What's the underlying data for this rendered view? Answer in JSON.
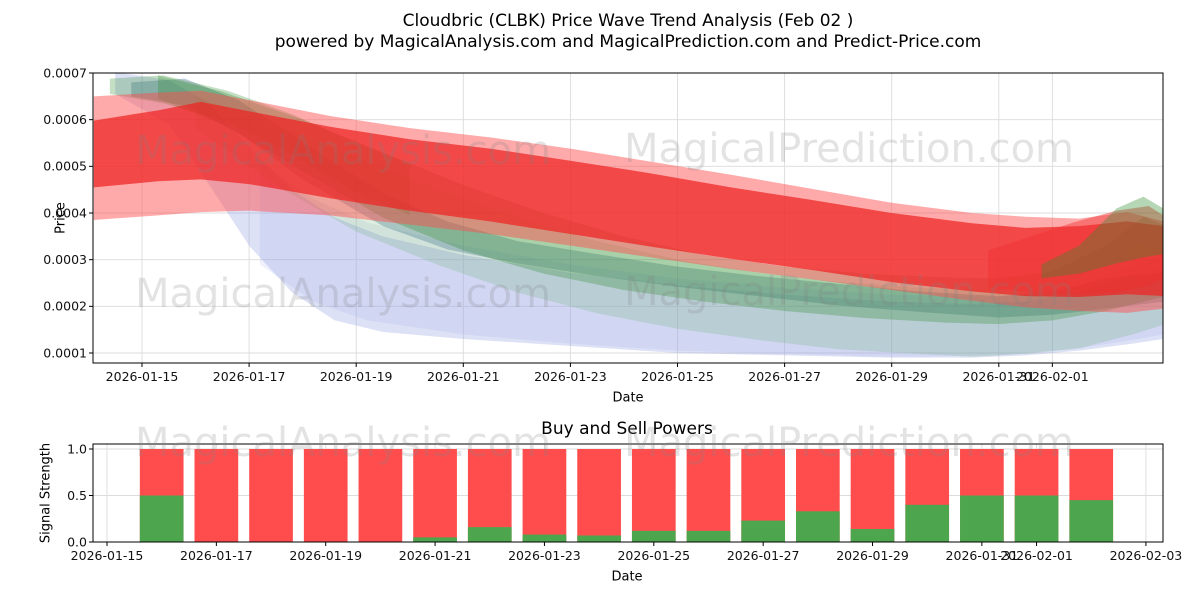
{
  "title": {
    "line1": "Cloudbric (CLBK) Price Wave Trend Analysis (Feb 02 )",
    "line2": "powered by MagicalAnalysis.com and MagicalPrediction.com and Predict-Price.com"
  },
  "watermark": {
    "left_text": "MagicalAnalysis.com",
    "right_text": "MagicalPrediction.com"
  },
  "chart_data": [
    {
      "type": "area",
      "name": "price-wave-trend",
      "ylabel": "Price",
      "xlabel": "Date",
      "grid": true,
      "price_unit": 0.0001,
      "ylim_e4": [
        0.786,
        7.0
      ],
      "xlim_days": [
        -0.92,
        19.07
      ],
      "y_ticks": [
        {
          "label": "0.0007",
          "value_e4": 7
        },
        {
          "label": "0.0006",
          "value_e4": 6
        },
        {
          "label": "0.0005",
          "value_e4": 5
        },
        {
          "label": "0.0004",
          "value_e4": 4
        },
        {
          "label": "0.0003",
          "value_e4": 3
        },
        {
          "label": "0.0002",
          "value_e4": 2
        },
        {
          "label": "0.0001",
          "value_e4": 1
        }
      ],
      "x_ticks": [
        {
          "label": "2026-01-15",
          "day": 0
        },
        {
          "label": "2026-01-17",
          "day": 2
        },
        {
          "label": "2026-01-19",
          "day": 4
        },
        {
          "label": "2026-01-21",
          "day": 6
        },
        {
          "label": "2026-01-23",
          "day": 8
        },
        {
          "label": "2026-01-25",
          "day": 10
        },
        {
          "label": "2026-01-27",
          "day": 12
        },
        {
          "label": "2026-01-29",
          "day": 14
        },
        {
          "label": "2026-01-31",
          "day": 16
        },
        {
          "label": "2026-02-01",
          "day": 17
        }
      ],
      "bands": [
        {
          "name": "lavender-light",
          "color": "#aab4ea",
          "alpha": 0.2,
          "points": [
            [
              2.2,
              5.1,
              2.9
            ],
            [
              3.2,
              4.3,
              2.1
            ],
            [
              4.2,
              3.8,
              1.7
            ],
            [
              6,
              3.3,
              1.4
            ],
            [
              8,
              2.9,
              1.2
            ],
            [
              10,
              2.6,
              1.05
            ],
            [
              12,
              2.4,
              0.98
            ],
            [
              14,
              2.25,
              0.92
            ],
            [
              16,
              2.2,
              0.95
            ],
            [
              17.5,
              2.45,
              1.1
            ],
            [
              18.6,
              2.9,
              1.3
            ],
            [
              19.07,
              3.0,
              1.4
            ]
          ]
        },
        {
          "name": "lavender",
          "color": "#8f9be0",
          "alpha": 0.3,
          "points": [
            [
              -0.5,
              7.02,
              6.55
            ],
            [
              0.5,
              6.85,
              5.9
            ],
            [
              1.2,
              6.4,
              4.7
            ],
            [
              2.0,
              5.4,
              3.3
            ],
            [
              2.8,
              4.5,
              2.3
            ],
            [
              3.6,
              3.9,
              1.7
            ],
            [
              4.5,
              3.5,
              1.45
            ],
            [
              6.0,
              3.1,
              1.3
            ],
            [
              8.0,
              2.72,
              1.15
            ],
            [
              10.0,
              2.45,
              1.0
            ],
            [
              12.0,
              2.25,
              0.95
            ],
            [
              14.0,
              2.1,
              0.9
            ],
            [
              15.5,
              2.05,
              0.9
            ],
            [
              16.5,
              2.1,
              0.95
            ],
            [
              17.5,
              2.3,
              1.05
            ],
            [
              18.5,
              2.7,
              1.2
            ],
            [
              19.07,
              2.8,
              1.3
            ]
          ]
        },
        {
          "name": "steel-blue",
          "color": "#5b7fa6",
          "alpha": 0.4,
          "points": [
            [
              -0.2,
              6.8,
              6.5
            ],
            [
              0.8,
              6.88,
              6.3
            ],
            [
              1.8,
              6.42,
              5.72
            ],
            [
              3.0,
              5.52,
              4.72
            ],
            [
              4.5,
              4.42,
              3.72
            ],
            [
              5.7,
              3.82,
              3.22
            ],
            [
              7.0,
              3.4,
              2.92
            ],
            [
              8.5,
              3.12,
              2.65
            ],
            [
              10.0,
              2.85,
              2.42
            ],
            [
              11.5,
              2.65,
              2.22
            ],
            [
              13.0,
              2.48,
              2.02
            ],
            [
              14.5,
              2.32,
              1.88
            ],
            [
              16.0,
              2.22,
              1.76
            ],
            [
              17.0,
              2.3,
              1.82
            ],
            [
              18.0,
              2.6,
              1.95
            ],
            [
              19.07,
              2.72,
              2.1
            ]
          ]
        },
        {
          "name": "green-topleft",
          "color": "#2e8b2e",
          "alpha": 0.28,
          "points": [
            [
              -0.6,
              6.88,
              6.55
            ],
            [
              0.4,
              6.95,
              6.35
            ],
            [
              1.6,
              6.62,
              5.95
            ],
            [
              2.8,
              6.12,
              5.25
            ],
            [
              4.0,
              5.5,
              4.45
            ],
            [
              5.0,
              5.05,
              3.95
            ]
          ]
        },
        {
          "name": "green-light",
          "color": "#4ca64c",
          "alpha": 0.18,
          "points": [
            [
              1.0,
              6.5,
              5.8
            ],
            [
              2.5,
              5.9,
              4.6
            ],
            [
              4.0,
              5.2,
              3.6
            ],
            [
              5.5,
              4.5,
              2.9
            ],
            [
              7.0,
              3.9,
              2.3
            ],
            [
              8.5,
              3.4,
              1.85
            ],
            [
              10.0,
              3.0,
              1.52
            ],
            [
              11.5,
              2.72,
              1.28
            ],
            [
              13.0,
              2.52,
              1.08
            ],
            [
              14.5,
              2.4,
              0.98
            ],
            [
              15.5,
              2.36,
              0.92
            ],
            [
              16.5,
              2.42,
              0.98
            ],
            [
              17.5,
              2.7,
              1.1
            ],
            [
              18.5,
              3.3,
              1.4
            ],
            [
              19.07,
              3.42,
              1.6
            ]
          ]
        },
        {
          "name": "green-main",
          "color": "#2e8b2e",
          "alpha": 0.3,
          "points": [
            [
              0.3,
              6.95,
              6.45
            ],
            [
              1.5,
              6.6,
              5.9
            ],
            [
              3.0,
              6.0,
              4.9
            ],
            [
              4.5,
              5.3,
              3.9
            ],
            [
              6.0,
              4.6,
              3.2
            ],
            [
              7.5,
              4.0,
              2.7
            ],
            [
              9.0,
              3.5,
              2.35
            ],
            [
              10.5,
              3.1,
              2.1
            ],
            [
              12.0,
              2.85,
              1.9
            ],
            [
              13.5,
              2.7,
              1.75
            ],
            [
              15.0,
              2.62,
              1.65
            ],
            [
              16.0,
              2.6,
              1.62
            ],
            [
              17.0,
              2.75,
              1.7
            ],
            [
              18.0,
              3.3,
              1.9
            ],
            [
              18.7,
              3.92,
              2.1
            ],
            [
              19.07,
              3.75,
              2.2
            ]
          ]
        },
        {
          "name": "red-outer",
          "color": "#ff4d4d",
          "alpha": 0.48,
          "points": [
            [
              -0.9,
              6.5,
              3.85
            ],
            [
              0.3,
              6.58,
              3.95
            ],
            [
              1.1,
              6.62,
              4.02
            ],
            [
              2.0,
              6.42,
              4.05
            ],
            [
              3.5,
              6.08,
              3.95
            ],
            [
              5.0,
              5.82,
              3.75
            ],
            [
              6.5,
              5.62,
              3.55
            ],
            [
              8.0,
              5.38,
              3.3
            ],
            [
              9.5,
              5.1,
              3.05
            ],
            [
              11.0,
              4.82,
              2.8
            ],
            [
              12.5,
              4.52,
              2.58
            ],
            [
              14.0,
              4.22,
              2.35
            ],
            [
              15.5,
              4.0,
              2.12
            ],
            [
              16.5,
              3.92,
              1.98
            ],
            [
              17.5,
              3.88,
              1.9
            ],
            [
              18.4,
              4.02,
              1.86
            ],
            [
              19.07,
              3.82,
              1.95
            ]
          ]
        },
        {
          "name": "red-core",
          "color": "#ee2222",
          "alpha": 0.72,
          "points": [
            [
              -0.9,
              5.98,
              4.55
            ],
            [
              0.3,
              6.2,
              4.68
            ],
            [
              1.1,
              6.38,
              4.72
            ],
            [
              2.0,
              6.18,
              4.62
            ],
            [
              3.5,
              5.85,
              4.32
            ],
            [
              5.0,
              5.58,
              4.05
            ],
            [
              6.5,
              5.38,
              3.82
            ],
            [
              8.0,
              5.12,
              3.55
            ],
            [
              9.5,
              4.85,
              3.28
            ],
            [
              11.0,
              4.55,
              3.02
            ],
            [
              12.5,
              4.28,
              2.78
            ],
            [
              14.0,
              4.0,
              2.52
            ],
            [
              15.5,
              3.78,
              2.32
            ],
            [
              16.5,
              3.68,
              2.22
            ],
            [
              17.5,
              3.72,
              2.2
            ],
            [
              18.4,
              3.82,
              2.26
            ],
            [
              19.07,
              3.72,
              2.22
            ]
          ]
        },
        {
          "name": "red-right",
          "color": "#f03030",
          "alpha": 0.45,
          "points": [
            [
              15.8,
              3.2,
              2.4
            ],
            [
              16.6,
              3.5,
              2.3
            ],
            [
              17.4,
              3.8,
              2.25
            ],
            [
              18.2,
              4.05,
              2.3
            ],
            [
              18.8,
              4.15,
              2.45
            ],
            [
              19.07,
              3.95,
              2.6
            ]
          ]
        },
        {
          "name": "green-right",
          "color": "#2e8b2e",
          "alpha": 0.35,
          "points": [
            [
              16.8,
              2.9,
              2.6
            ],
            [
              17.5,
              3.3,
              2.7
            ],
            [
              18.2,
              4.1,
              2.92
            ],
            [
              18.7,
              4.35,
              3.05
            ],
            [
              19.07,
              4.1,
              3.12
            ]
          ]
        }
      ]
    },
    {
      "type": "bar",
      "name": "buy-sell-powers",
      "title": "Buy and Sell Powers",
      "ylabel": "Signal Strength",
      "xlabel": "Date",
      "grid": true,
      "ylim": [
        0,
        1.054
      ],
      "y_ticks": [
        {
          "label": "0.0",
          "value": 0.0
        },
        {
          "label": "0.5",
          "value": 0.5
        },
        {
          "label": "1.0",
          "value": 1.0
        }
      ],
      "x_ticks": [
        {
          "label": "2026-01-15",
          "day": 0
        },
        {
          "label": "2026-01-17",
          "day": 2
        },
        {
          "label": "2026-01-19",
          "day": 4
        },
        {
          "label": "2026-01-21",
          "day": 6
        },
        {
          "label": "2026-01-23",
          "day": 8
        },
        {
          "label": "2026-01-25",
          "day": 10
        },
        {
          "label": "2026-01-27",
          "day": 12
        },
        {
          "label": "2026-01-29",
          "day": 14
        },
        {
          "label": "2026-01-31",
          "day": 16
        },
        {
          "label": "2026-02-01",
          "day": 17
        },
        {
          "label": "2026-02-03",
          "day": 19
        }
      ],
      "categories": [
        "2026-01-16",
        "2026-01-17",
        "2026-01-18",
        "2026-01-19",
        "2026-01-20",
        "2026-01-21",
        "2026-01-22",
        "2026-01-23",
        "2026-01-24",
        "2026-01-25",
        "2026-01-26",
        "2026-01-27",
        "2026-01-28",
        "2026-01-29",
        "2026-01-30",
        "2026-01-31",
        "2026-02-01",
        "2026-02-02"
      ],
      "series": [
        {
          "name": "sell",
          "color": "#ff4d4d",
          "values": [
            1,
            1,
            1,
            1,
            1,
            1,
            1,
            1,
            1,
            1,
            1,
            1,
            1,
            1,
            1,
            1,
            1,
            1
          ]
        },
        {
          "name": "buy",
          "color": "#4da64d",
          "values": [
            0.5,
            0,
            0,
            0,
            0,
            0.05,
            0.16,
            0.08,
            0.07,
            0.12,
            0.12,
            0.23,
            0.33,
            0.14,
            0.4,
            0.5,
            0.5,
            0.45
          ]
        }
      ]
    }
  ]
}
